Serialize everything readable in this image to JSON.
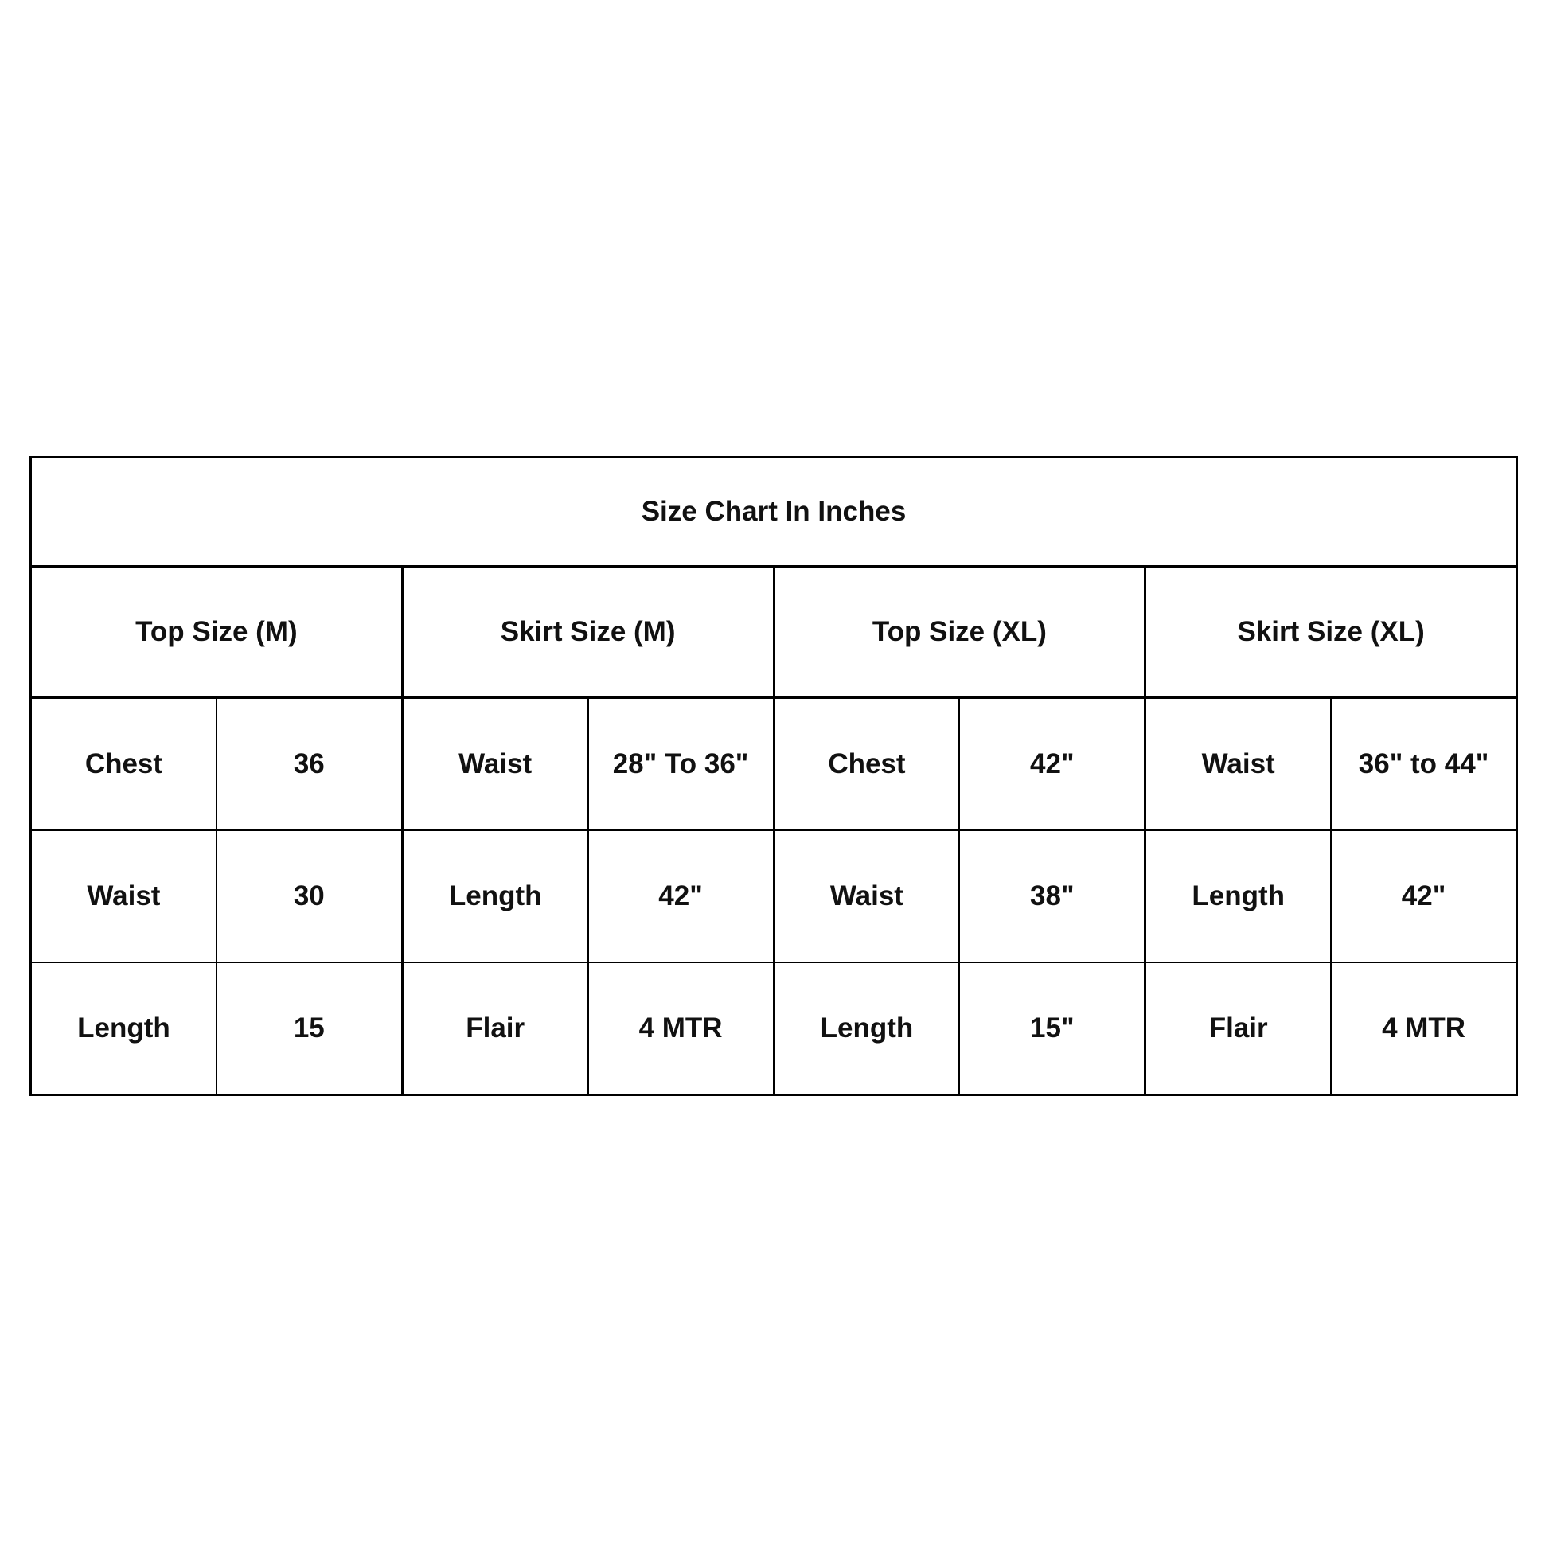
{
  "title": "Size Chart In Inches",
  "groups": [
    {
      "header": "Top Size (M)",
      "rows": [
        [
          "Chest",
          "36"
        ],
        [
          "Waist",
          "30"
        ],
        [
          "Length",
          "15"
        ]
      ]
    },
    {
      "header": "Skirt Size (M)",
      "rows": [
        [
          "Waist",
          "28\" To 36\""
        ],
        [
          "Length",
          "42\""
        ],
        [
          "Flair",
          "4 MTR"
        ]
      ]
    },
    {
      "header": "Top Size (XL)",
      "rows": [
        [
          "Chest",
          "42\""
        ],
        [
          "Waist",
          "38\""
        ],
        [
          "Length",
          "15\""
        ]
      ]
    },
    {
      "header": "Skirt Size (XL)",
      "rows": [
        [
          "Waist",
          "36\" to 44\""
        ],
        [
          "Length",
          "42\""
        ],
        [
          "Flair",
          "4 MTR"
        ]
      ]
    }
  ]
}
